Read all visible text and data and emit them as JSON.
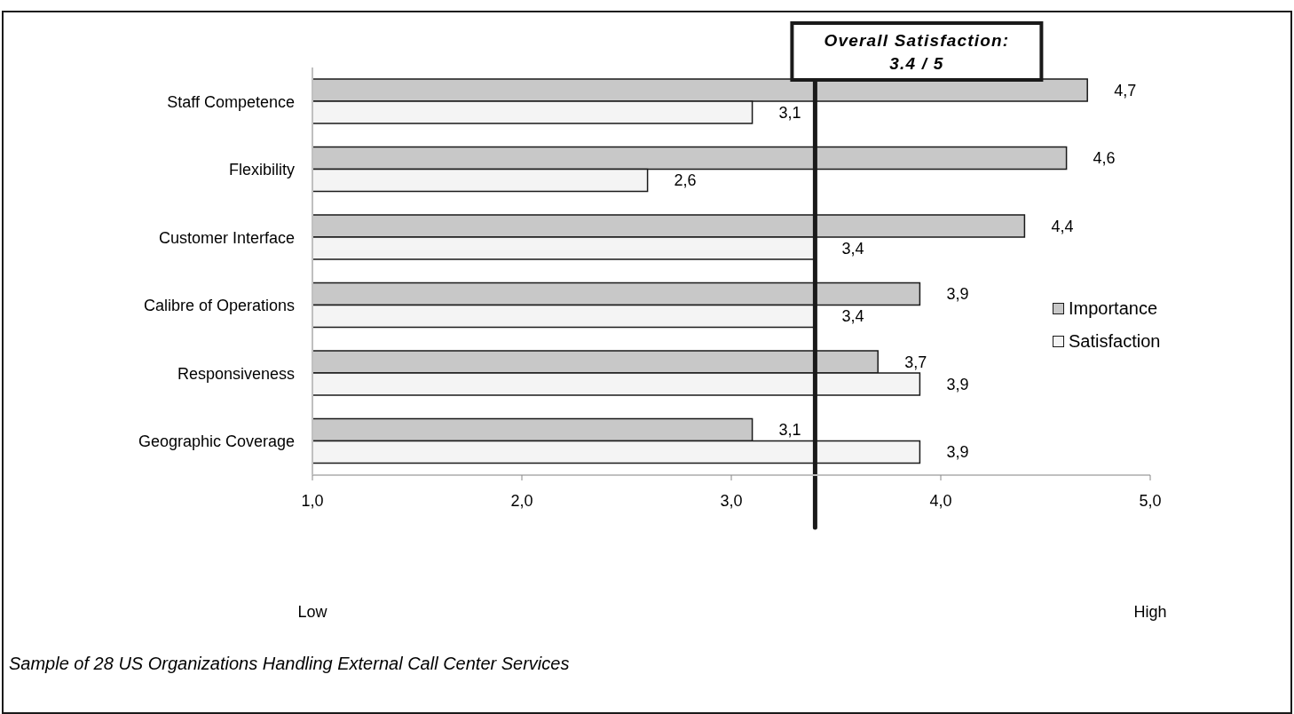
{
  "chart_data": {
    "type": "bar",
    "orientation": "horizontal",
    "categories": [
      "Staff Competence",
      "Flexibility",
      "Customer Interface",
      "Calibre of Operations",
      "Responsiveness",
      "Geographic Coverage"
    ],
    "series": [
      {
        "name": "Importance",
        "color": "#c8c8c8",
        "values": [
          4.7,
          4.6,
          4.4,
          3.9,
          3.7,
          3.1
        ],
        "value_labels": [
          "4,7",
          "4,6",
          "4,4",
          "3,9",
          "3,7",
          "3,1"
        ]
      },
      {
        "name": "Satisfaction",
        "color": "#f4f4f4",
        "values": [
          3.1,
          2.6,
          3.4,
          3.4,
          3.9,
          3.9
        ],
        "value_labels": [
          "3,1",
          "2,6",
          "3,4",
          "3,4",
          "3,9",
          "3,9"
        ]
      }
    ],
    "xlim": [
      1,
      5
    ],
    "xticks": [
      {
        "value": 1,
        "label": "1,0"
      },
      {
        "value": 2,
        "label": "2,0"
      },
      {
        "value": 3,
        "label": "3,0"
      },
      {
        "value": 4,
        "label": "4,0"
      },
      {
        "value": 5,
        "label": "5,0"
      }
    ],
    "ref_lines": [
      {
        "axis": "x",
        "value": 3.4,
        "label": "Overall Satisfaction:\n3.4 / 5",
        "color": "#1a1a1a"
      }
    ],
    "annotations": [
      "Low",
      "High",
      "Sample of 28 US Organizations Handling External Call Center Services"
    ],
    "legend": "right"
  }
}
